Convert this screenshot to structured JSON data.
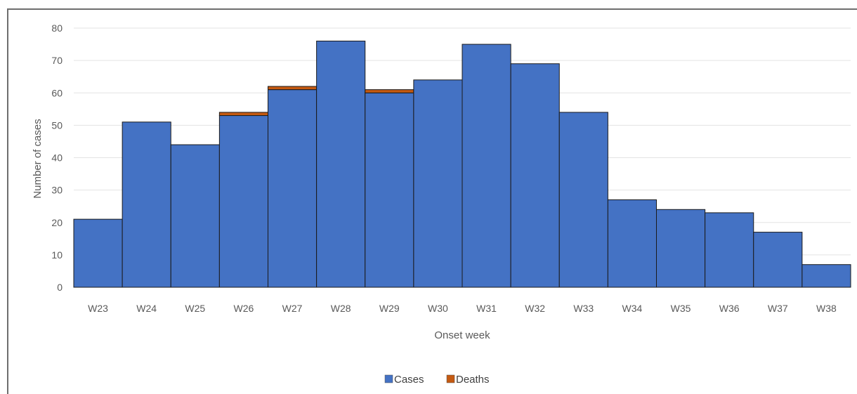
{
  "chart_data": {
    "type": "bar",
    "stacked": true,
    "categories": [
      "W23",
      "W24",
      "W25",
      "W26",
      "W27",
      "W28",
      "W29",
      "W30",
      "W31",
      "W32",
      "W33",
      "W34",
      "W35",
      "W36",
      "W37",
      "W38"
    ],
    "series": [
      {
        "name": "Cases",
        "color": "#4472c4",
        "values": [
          21,
          51,
          44,
          53,
          61,
          76,
          60,
          64,
          75,
          69,
          54,
          27,
          24,
          23,
          17,
          7
        ]
      },
      {
        "name": "Deaths",
        "color": "#c55a11",
        "values": [
          0,
          0,
          0,
          1,
          1,
          0,
          1,
          0,
          0,
          0,
          0,
          0,
          0,
          0,
          0,
          0
        ]
      }
    ],
    "xlabel": "Onset week",
    "ylabel": "Number  of cases",
    "ylim": [
      0,
      80
    ],
    "yticks": [
      0,
      10,
      20,
      30,
      40,
      50,
      60,
      70,
      80
    ],
    "grid": true,
    "legend_position": "bottom"
  }
}
